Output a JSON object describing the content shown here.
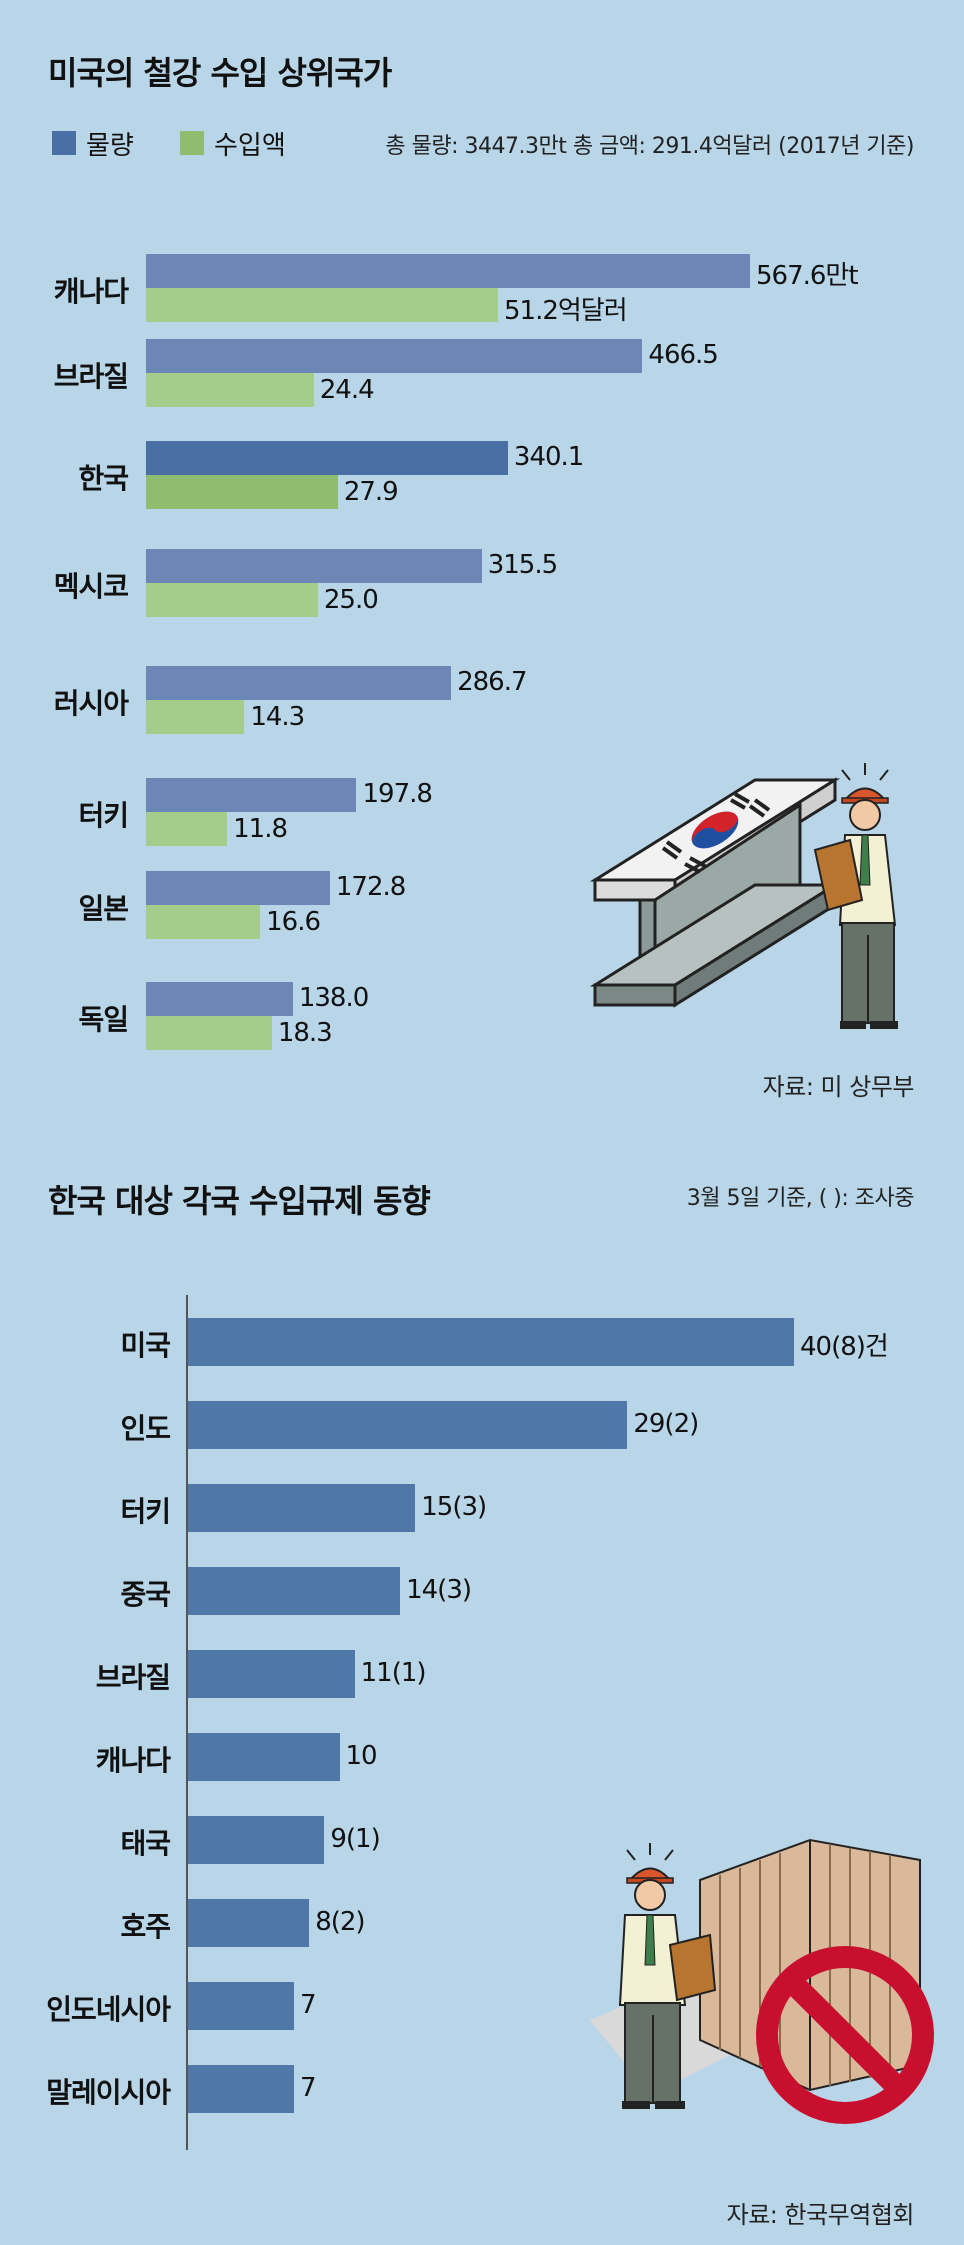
{
  "chart_data": [
    {
      "type": "bar",
      "orientation": "horizontal",
      "title": "미국의 철강 수입 상위국가",
      "note": "총 물량: 3447.3만t 총 금액: 291.4억달러 (2017년 기준)",
      "source": "자료: 미 상무부",
      "legend_position": "top-left",
      "grid": false,
      "categories": [
        "캐나다",
        "브라질",
        "한국",
        "멕시코",
        "러시아",
        "터키",
        "일본",
        "독일"
      ],
      "series": [
        {
          "name": "물량",
          "color": "#6c86b6",
          "highlight_color": "#4a6fa5",
          "values": [
            567.6,
            466.5,
            340.1,
            315.5,
            286.7,
            197.8,
            172.8,
            138.0
          ],
          "labels": [
            "567.6만t",
            "466.5",
            "340.1",
            "315.5",
            "286.7",
            "197.8",
            "172.8",
            "138.0"
          ]
        },
        {
          "name": "수입액",
          "color": "#a6cc8b",
          "highlight_color": "#8fbd6f",
          "values": [
            51.2,
            24.4,
            27.9,
            25.0,
            14.3,
            11.8,
            16.6,
            18.3
          ],
          "labels": [
            "51.2억달러",
            "24.4",
            "27.9",
            "25.0",
            "14.3",
            "11.8",
            "16.6",
            "18.3"
          ]
        }
      ],
      "highlight_category": "한국"
    },
    {
      "type": "bar",
      "orientation": "horizontal",
      "title": "한국 대상 각국 수입규제 동향",
      "note": "3월 5일 기준, ( ): 조사중",
      "source": "자료: 한국무역협회",
      "grid": false,
      "categories": [
        "미국",
        "인도",
        "터키",
        "중국",
        "브라질",
        "캐나다",
        "태국",
        "호주",
        "인도네시아",
        "말레이시아"
      ],
      "series": [
        {
          "color": "#4f77a8",
          "values": [
            40,
            29,
            15,
            14,
            11,
            10,
            9,
            8,
            7,
            7
          ],
          "under_investigation": [
            8,
            2,
            3,
            3,
            1,
            null,
            1,
            2,
            null,
            null
          ],
          "labels": [
            "40(8)건",
            "29(2)",
            "15(3)",
            "14(3)",
            "11(1)",
            "10",
            "9(1)",
            "8(2)",
            "7",
            "7"
          ]
        }
      ]
    }
  ],
  "illustrations": {
    "top": "steel-beam-korean-flag-with-worker",
    "bottom": "worker-with-crates-and-prohibition-sign"
  }
}
